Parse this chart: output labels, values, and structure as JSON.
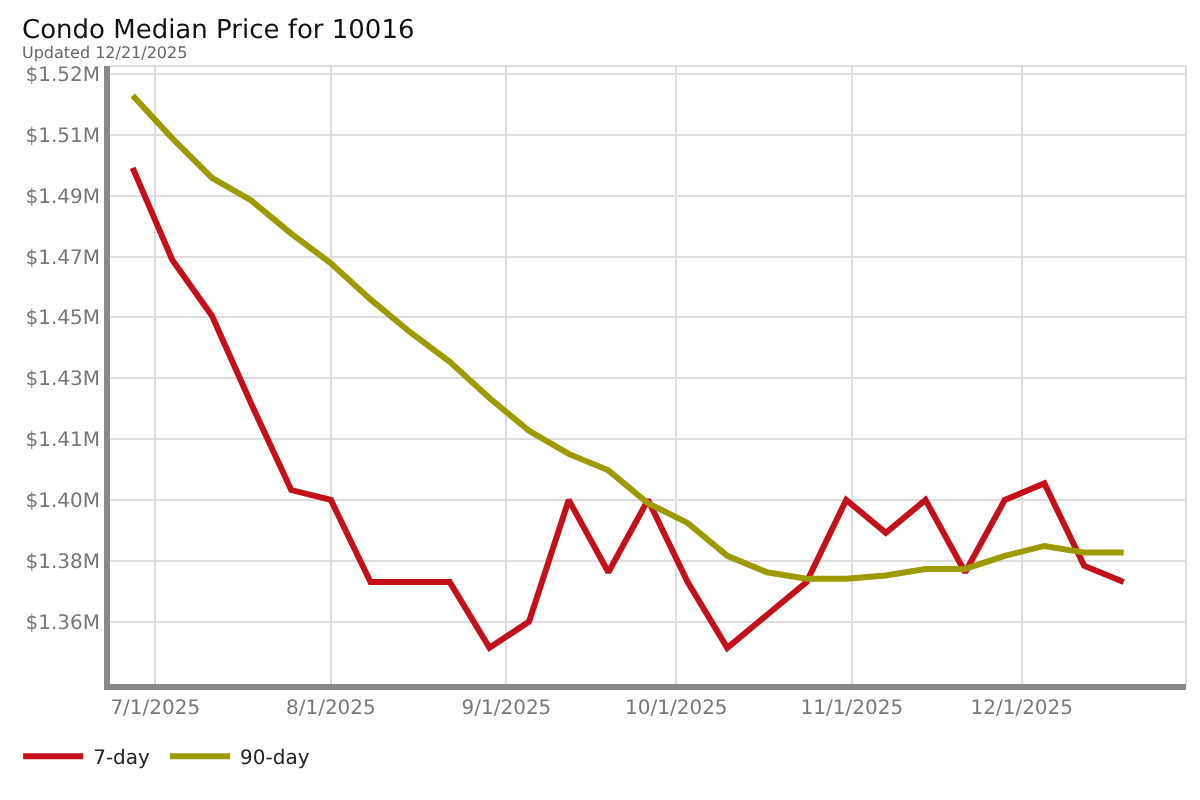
{
  "chart_data": {
    "type": "line",
    "title": "Condo Median Price for 10016",
    "subtitle": "Updated 12/21/2025",
    "x": [
      "2025-06-27",
      "2025-07-04",
      "2025-07-11",
      "2025-07-18",
      "2025-07-25",
      "2025-08-01",
      "2025-08-08",
      "2025-08-15",
      "2025-08-22",
      "2025-08-29",
      "2025-09-05",
      "2025-09-12",
      "2025-09-19",
      "2025-09-26",
      "2025-10-03",
      "2025-10-10",
      "2025-10-17",
      "2025-10-24",
      "2025-10-31",
      "2025-11-07",
      "2025-11-14",
      "2025-11-21",
      "2025-11-28",
      "2025-12-05",
      "2025-12-12",
      "2025-12-19"
    ],
    "series": [
      {
        "name": "7-day",
        "color": "#c4101a",
        "values": [
          1.496,
          1.468,
          1.451,
          1.424,
          1.398,
          1.395,
          1.37,
          1.37,
          1.37,
          1.35,
          1.358,
          1.395,
          1.373,
          1.395,
          1.37,
          1.35,
          1.36,
          1.37,
          1.395,
          1.385,
          1.395,
          1.373,
          1.395,
          1.4,
          1.375,
          1.37
        ]
      },
      {
        "name": "90-day",
        "color": "#9c9a00",
        "values": [
          1.518,
          1.505,
          1.493,
          1.486,
          1.476,
          1.467,
          1.456,
          1.446,
          1.437,
          1.426,
          1.416,
          1.409,
          1.404,
          1.394,
          1.388,
          1.378,
          1.373,
          1.371,
          1.371,
          1.372,
          1.374,
          1.374,
          1.378,
          1.381,
          1.379,
          1.379
        ]
      }
    ],
    "xlim": [
      "2025-06-23",
      "2025-12-30"
    ],
    "xticks": [
      {
        "value": "2025-07-01",
        "label": "7/1/2025"
      },
      {
        "value": "2025-08-01",
        "label": "8/1/2025"
      },
      {
        "value": "2025-09-01",
        "label": "9/1/2025"
      },
      {
        "value": "2025-10-01",
        "label": "10/1/2025"
      },
      {
        "value": "2025-11-01",
        "label": "11/1/2025"
      },
      {
        "value": "2025-12-01",
        "label": "12/1/2025"
      }
    ],
    "ylim": [
      1.339,
      1.527
    ],
    "yticks": [
      {
        "value": 1.358,
        "label": "$1.36M"
      },
      {
        "value": 1.3765,
        "label": "$1.38M"
      },
      {
        "value": 1.395,
        "label": "$1.40M"
      },
      {
        "value": 1.4135,
        "label": "$1.41M"
      },
      {
        "value": 1.432,
        "label": "$1.43M"
      },
      {
        "value": 1.4505,
        "label": "$1.45M"
      },
      {
        "value": 1.469,
        "label": "$1.47M"
      },
      {
        "value": 1.4875,
        "label": "$1.49M"
      },
      {
        "value": 1.506,
        "label": "$1.51M"
      },
      {
        "value": 1.5245,
        "label": "$1.52M"
      }
    ],
    "grid": true,
    "legend": "bottom left",
    "marker": "none",
    "line_style": "solid"
  }
}
